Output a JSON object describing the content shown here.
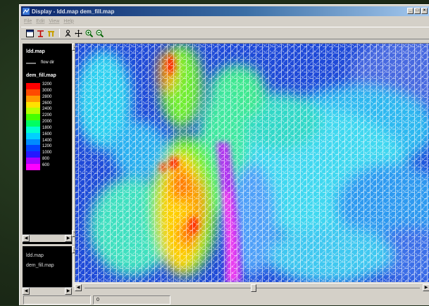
{
  "window": {
    "title": "Display - ldd.map dem_fill.map",
    "controls": [
      "_",
      "□",
      "×"
    ]
  },
  "menu": [
    "File",
    "Edit",
    "View",
    "Help"
  ],
  "toolbar": {
    "icons": [
      "legend-icon",
      "draw-icon",
      "bars-icon",
      "zoom-people-icon",
      "pan-icon",
      "zoom-in-icon",
      "zoom-out-icon"
    ]
  },
  "legend": {
    "map1_title": "ldd.map",
    "map1_item": "flow dir",
    "map2_title": "dem_fill.map",
    "values": [
      "3200",
      "3000",
      "2800",
      "2600",
      "2400",
      "2200",
      "2000",
      "1800",
      "1600",
      "1400",
      "1200",
      "1000",
      "800",
      "600"
    ],
    "colors": [
      "#ff0000",
      "#ff4a00",
      "#ff9a00",
      "#ffe100",
      "#b8ff00",
      "#46ff00",
      "#00ff62",
      "#00ffd0",
      "#00d0ff",
      "#008cff",
      "#0044ff",
      "#2418ff",
      "#a800ff",
      "#ff00ff"
    ]
  },
  "names_panel": {
    "items": [
      "ldd.map",
      "dem_fill.map"
    ]
  },
  "status": {
    "pane1": "",
    "pane2": "0"
  }
}
